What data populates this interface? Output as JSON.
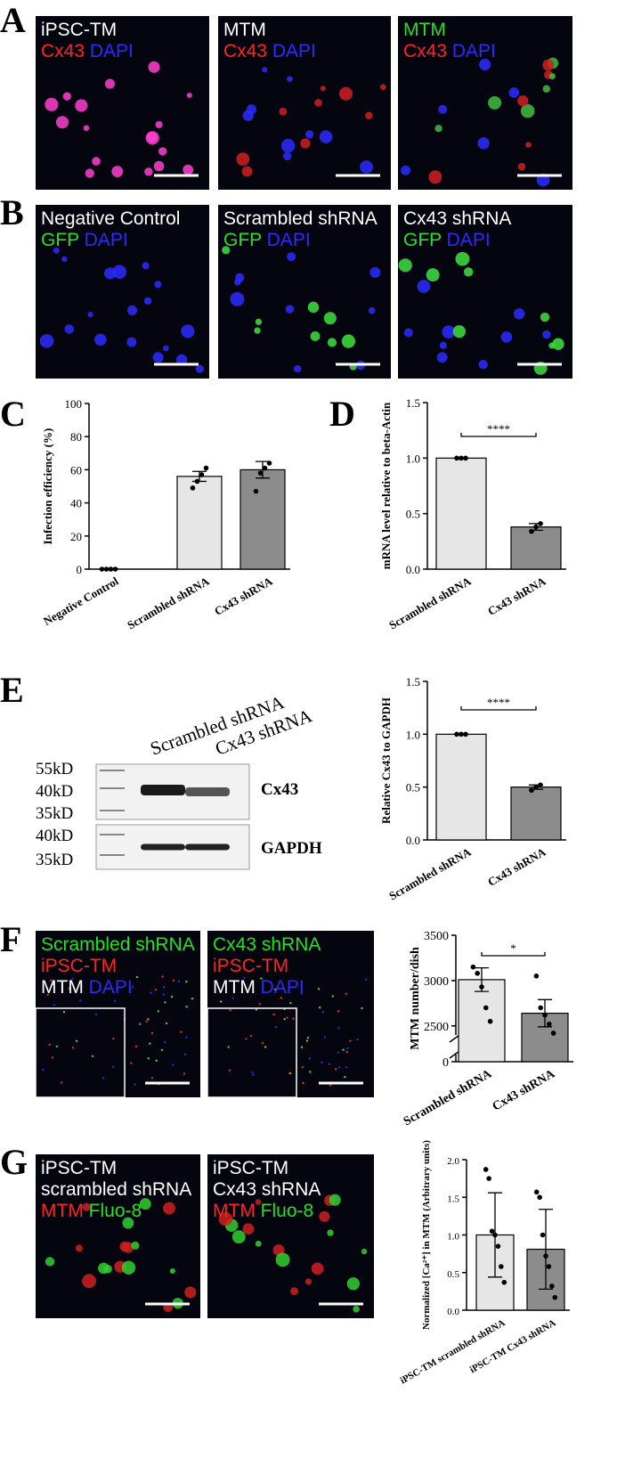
{
  "letters": [
    "A",
    "B",
    "C",
    "D",
    "E",
    "F",
    "G"
  ],
  "panels": {
    "A": {
      "images": [
        {
          "lines": [
            [
              {
                "text": "iPSC-TM",
                "color": "#ffffff"
              }
            ],
            [
              {
                "text": "Cx43",
                "color": "#ff2424"
              },
              {
                "text": "DAPI",
                "color": "#2b2bff"
              }
            ]
          ]
        },
        {
          "lines": [
            [
              {
                "text": "MTM",
                "color": "#ffffff"
              }
            ],
            [
              {
                "text": "Cx43",
                "color": "#ff2424"
              },
              {
                "text": "DAPI",
                "color": "#2b2bff"
              }
            ]
          ]
        },
        {
          "lines": [
            [
              {
                "text": "MTM",
                "color": "#22e022"
              }
            ],
            [
              {
                "text": "Cx43",
                "color": "#ff2424"
              },
              {
                "text": "DAPI",
                "color": "#2b2bff"
              }
            ]
          ]
        }
      ]
    },
    "B": {
      "images": [
        {
          "lines": [
            [
              {
                "text": "Negative Control",
                "color": "#ffffff"
              }
            ],
            [
              {
                "text": "GFP",
                "color": "#22e022"
              },
              {
                "text": "DAPI",
                "color": "#2b2bff"
              }
            ]
          ]
        },
        {
          "lines": [
            [
              {
                "text": "Scrambled shRNA",
                "color": "#ffffff"
              }
            ],
            [
              {
                "text": "GFP",
                "color": "#22e022"
              },
              {
                "text": "DAPI",
                "color": "#2b2bff"
              }
            ]
          ]
        },
        {
          "lines": [
            [
              {
                "text": "Cx43 shRNA",
                "color": "#ffffff"
              }
            ],
            [
              {
                "text": "GFP",
                "color": "#22e022"
              },
              {
                "text": "DAPI",
                "color": "#2b2bff"
              }
            ]
          ]
        }
      ]
    },
    "E": {
      "blot": {
        "columns": [
          "Scrambled shRNA",
          "Cx43 shRNA"
        ],
        "markers": [
          "55kD",
          "40kD",
          "35kD",
          "40kD",
          "35kD"
        ],
        "bands": [
          "Cx43",
          "GAPDH"
        ]
      }
    },
    "F": {
      "images": [
        {
          "lines": [
            [
              {
                "text": "Scrambled shRNA",
                "color": "#22e022"
              }
            ],
            [
              {
                "text": "iPSC-TM",
                "color": "#ff2424"
              }
            ],
            [
              {
                "text": "MTM",
                "color": "#ffffff"
              },
              {
                "text": "DAPI",
                "color": "#2b2bff"
              }
            ]
          ]
        },
        {
          "lines": [
            [
              {
                "text": "Cx43 shRNA",
                "color": "#22e022"
              }
            ],
            [
              {
                "text": "iPSC-TM",
                "color": "#ff2424"
              }
            ],
            [
              {
                "text": "MTM",
                "color": "#ffffff"
              },
              {
                "text": "DAPI",
                "color": "#2b2bff"
              }
            ]
          ]
        }
      ]
    },
    "G": {
      "images": [
        {
          "lines": [
            [
              {
                "text": "iPSC-TM",
                "color": "#ffffff"
              }
            ],
            [
              {
                "text": "scrambled shRNA",
                "color": "#ffffff"
              }
            ],
            [
              {
                "text": "MTM",
                "color": "#ff2424"
              },
              {
                "text": "Fluo-8",
                "color": "#22e022"
              }
            ]
          ]
        },
        {
          "lines": [
            [
              {
                "text": "iPSC-TM",
                "color": "#ffffff"
              }
            ],
            [
              {
                "text": "Cx43 shRNA",
                "color": "#ffffff"
              }
            ],
            [
              {
                "text": "MTM",
                "color": "#ff2424"
              },
              {
                "text": "Fluo-8",
                "color": "#22e022"
              }
            ]
          ]
        }
      ]
    }
  },
  "chart_data": [
    {
      "type": "bar",
      "ylabel": "Infection efficiency (%)",
      "categories": [
        "Negative Control",
        "Scrambled shRNA",
        "Cx43 shRNA"
      ],
      "values": [
        0,
        56,
        60
      ],
      "errors": [
        0,
        3,
        5
      ],
      "points": [
        [
          0,
          0,
          0,
          0
        ],
        [
          49,
          53,
          57,
          61
        ],
        [
          47,
          58,
          61,
          64
        ]
      ],
      "colors": [
        "#ffffff",
        "#e6e6e6",
        "#8c8c8c"
      ],
      "ylim": [
        0,
        100
      ],
      "yticks": [
        0,
        20,
        40,
        60,
        80,
        100
      ]
    },
    {
      "type": "bar",
      "ylabel": "mRNA level relative to beta-Actin",
      "categories": [
        "Scrambled shRNA",
        "Cx43 shRNA"
      ],
      "values": [
        1.0,
        0.38
      ],
      "errors": [
        0,
        0.03
      ],
      "points": [
        [
          1.0,
          1.0,
          1.0
        ],
        [
          0.34,
          0.38,
          0.41
        ]
      ],
      "colors": [
        "#e6e6e6",
        "#8c8c8c"
      ],
      "ylim": [
        0,
        1.5
      ],
      "yticks": [
        {
          "value": 0,
          "label": "0.0"
        },
        {
          "value": 0.5,
          "label": "0.5"
        },
        {
          "value": 1,
          "label": "1.0"
        },
        {
          "value": 1.5,
          "label": "1.5"
        }
      ],
      "significance": "****"
    },
    {
      "type": "bar",
      "ylabel": "Relative Cx43 to GAPDH",
      "categories": [
        "Scrambled shRNA",
        "Cx43 shRNA"
      ],
      "values": [
        1.0,
        0.5
      ],
      "errors": [
        0,
        0.02
      ],
      "points": [
        [
          1.0,
          1.0,
          1.0
        ],
        [
          0.47,
          0.5,
          0.52
        ]
      ],
      "colors": [
        "#e6e6e6",
        "#8c8c8c"
      ],
      "ylim": [
        0,
        1.5
      ],
      "yticks": [
        {
          "value": 0,
          "label": "0.0"
        },
        {
          "value": 0.5,
          "label": "0.5"
        },
        {
          "value": 1,
          "label": "1.0"
        },
        {
          "value": 1.5,
          "label": "1.5"
        }
      ],
      "significance": "****"
    },
    {
      "type": "bar",
      "ylabel": "MTM number/dish",
      "categories": [
        "Scrambled shRNA",
        "Cx43 shRNA"
      ],
      "values": [
        3010,
        2640
      ],
      "errors": [
        130,
        150
      ],
      "points": [
        [
          3150,
          3080,
          2930,
          2700,
          2550
        ],
        [
          3050,
          2700,
          2620,
          2520,
          2420
        ]
      ],
      "colors": [
        "#e6e6e6",
        "#8c8c8c"
      ],
      "ylim": [
        0,
        3500
      ],
      "axis_break": [
        100,
        2400
      ],
      "yticks": [
        0,
        2500,
        3000,
        3500
      ],
      "significance": "*"
    },
    {
      "type": "bar",
      "ylabel": "Normalized [Ca²⁺] in MTM (Arbitrary units)",
      "categories": [
        "iPSC-TM scrambled shRNA",
        "iPSC-TM Cx43 shRNA"
      ],
      "values": [
        1.0,
        0.81
      ],
      "errors": [
        0.56,
        0.53
      ],
      "points": [
        [
          1.87,
          1.75,
          1.05,
          1.0,
          0.85,
          0.58,
          0.37
        ],
        [
          1.57,
          1.5,
          1.0,
          0.72,
          0.58,
          0.32,
          0.17
        ]
      ],
      "colors": [
        "#e6e6e6",
        "#8c8c8c"
      ],
      "ylim": [
        0,
        2
      ],
      "yticks": [
        {
          "value": 0,
          "label": "0.0"
        },
        {
          "value": 0.5,
          "label": "0.5"
        },
        {
          "value": 1,
          "label": "1.0"
        },
        {
          "value": 1.5,
          "label": "1.5"
        },
        {
          "value": 2,
          "label": "2.0"
        }
      ]
    }
  ]
}
